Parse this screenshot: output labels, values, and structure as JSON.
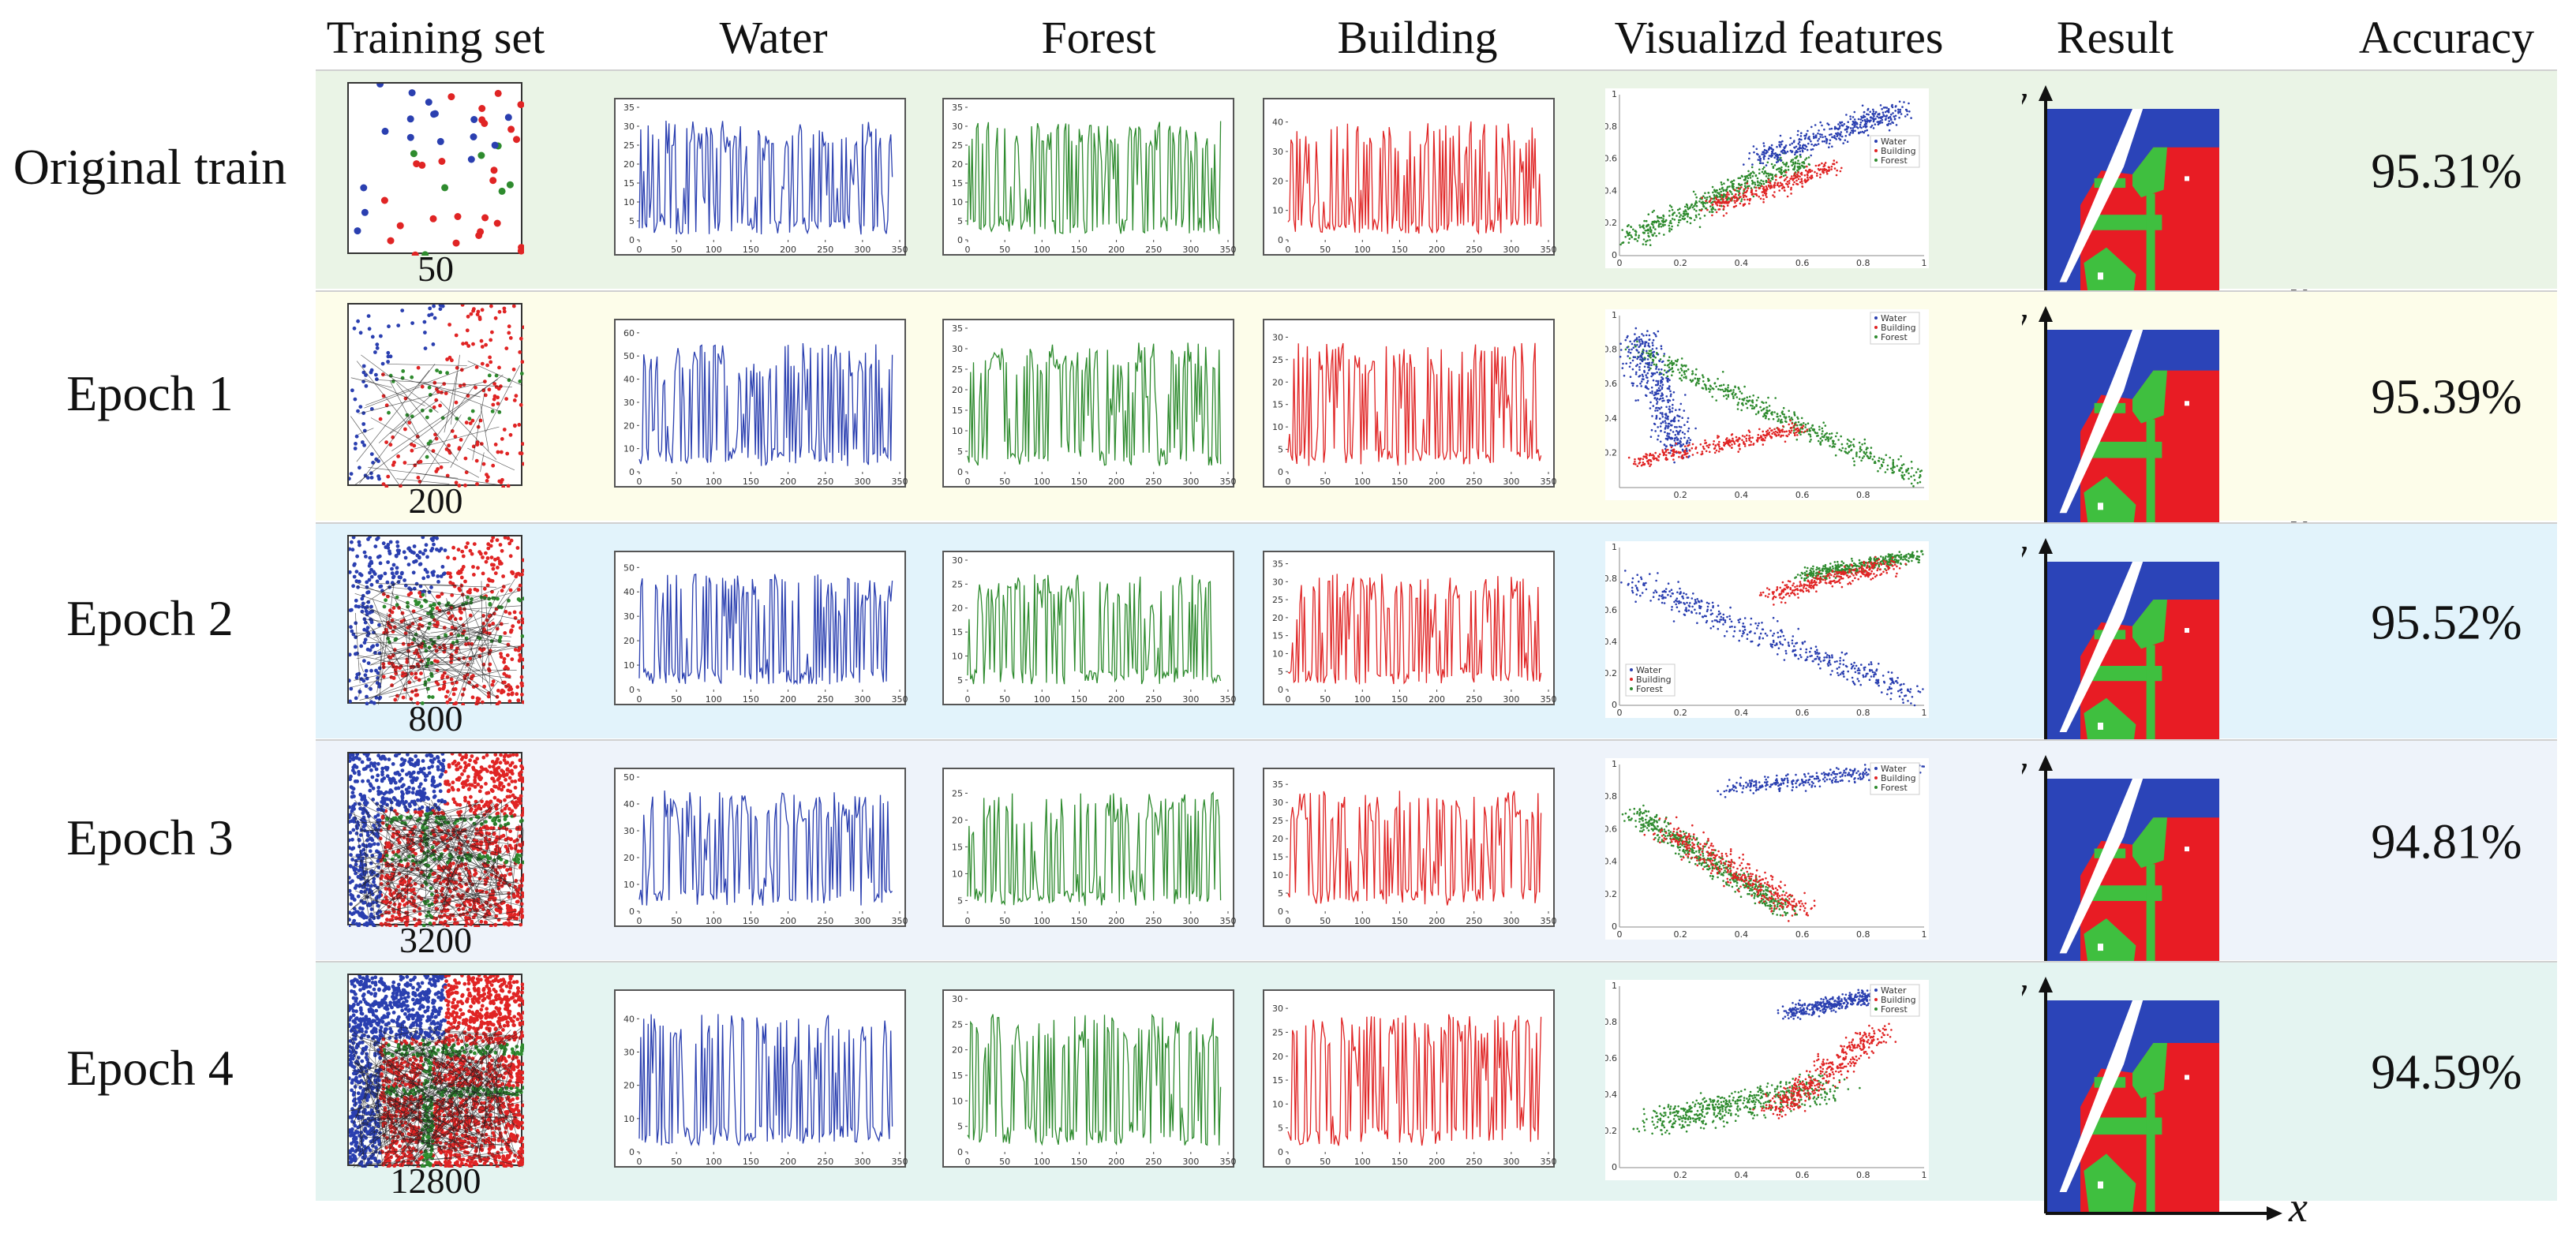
{
  "figure": {
    "headers": {
      "training_set": "Training set",
      "water": "Water",
      "forest": "Forest",
      "building": "Building",
      "visualized_features": "Visualizd features",
      "result": "Result",
      "accuracy": "Accuracy"
    },
    "colors": {
      "water": "#2a3fb0",
      "forest": "#2e8b2e",
      "building": "#e02424",
      "result_water": "#2b44b8",
      "result_forest": "#3fbf3f",
      "result_building": "#e81c24"
    },
    "legend_labels": [
      "Water",
      "Building",
      "Forest"
    ],
    "axis_labels": {
      "x": "x",
      "y": "y"
    },
    "rows": [
      {
        "label": "Original train",
        "count": "50",
        "accuracy": "95.31%",
        "bg": "#eaf4e6"
      },
      {
        "label": "Epoch 1",
        "count": "200",
        "accuracy": "95.39%",
        "bg": "#fdfdea"
      },
      {
        "label": "Epoch 2",
        "count": "800",
        "accuracy": "95.52%",
        "bg": "#e2f3fb"
      },
      {
        "label": "Epoch 3",
        "count": "3200",
        "accuracy": "94.81%",
        "bg": "#eef3fa"
      },
      {
        "label": "Epoch 4",
        "count": "12800",
        "accuracy": "94.59%",
        "bg": "#e4f4f1"
      }
    ]
  },
  "chart_data": [
    {
      "type": "line",
      "title": "Original train — Water",
      "x_ticks": [
        0,
        50,
        100,
        150,
        200,
        250,
        300,
        350
      ],
      "y_ticks": [
        0,
        5,
        10,
        15,
        20,
        25,
        30,
        35
      ],
      "ylim": [
        0,
        35
      ],
      "xlim": [
        0,
        350
      ]
    },
    {
      "type": "line",
      "title": "Original train — Forest",
      "x_ticks": [
        0,
        50,
        100,
        150,
        200,
        250,
        300,
        350
      ],
      "y_ticks": [
        0,
        5,
        10,
        15,
        20,
        25,
        30,
        35
      ],
      "ylim": [
        0,
        35
      ],
      "xlim": [
        0,
        350
      ]
    },
    {
      "type": "line",
      "title": "Original train — Building",
      "x_ticks": [
        0,
        50,
        100,
        150,
        200,
        250,
        300,
        350
      ],
      "y_ticks": [
        0,
        10,
        20,
        30,
        40
      ],
      "ylim": [
        0,
        45
      ],
      "xlim": [
        0,
        350
      ]
    },
    {
      "type": "scatter",
      "title": "Original train — Visualized features",
      "x_ticks": [
        0,
        0.2,
        0.4,
        0.6,
        0.8,
        1
      ],
      "y_ticks": [
        0,
        0.2,
        0.4,
        0.6,
        0.8,
        1
      ],
      "legend": [
        "Water",
        "Building",
        "Forest"
      ]
    },
    {
      "type": "line",
      "title": "Epoch 1 — Water",
      "x_ticks": [
        0,
        50,
        100,
        150,
        200,
        250,
        300,
        350
      ],
      "y_ticks": [
        0,
        10,
        20,
        30,
        40,
        50,
        60
      ],
      "ylim": [
        0,
        62
      ],
      "xlim": [
        0,
        350
      ]
    },
    {
      "type": "line",
      "title": "Epoch 1 — Forest",
      "x_ticks": [
        0,
        50,
        100,
        150,
        200,
        250,
        300,
        350
      ],
      "y_ticks": [
        0,
        5,
        10,
        15,
        20,
        25,
        30,
        35
      ],
      "ylim": [
        0,
        35
      ],
      "xlim": [
        0,
        350
      ]
    },
    {
      "type": "line",
      "title": "Epoch 1 — Building",
      "x_ticks": [
        0,
        50,
        100,
        150,
        200,
        250,
        300,
        350
      ],
      "y_ticks": [
        0,
        5,
        10,
        15,
        20,
        25,
        30
      ],
      "ylim": [
        0,
        32
      ],
      "xlim": [
        0,
        350
      ]
    },
    {
      "type": "scatter",
      "title": "Epoch 1 — Visualized features",
      "x_ticks": [
        0.2,
        0.4,
        0.6,
        0.8
      ],
      "y_ticks": [
        0.2,
        0.4,
        0.6,
        0.8,
        1
      ],
      "legend": [
        "Water",
        "Building",
        "Forest"
      ]
    },
    {
      "type": "line",
      "title": "Epoch 2 — Water",
      "x_ticks": [
        0,
        50,
        100,
        150,
        200,
        250,
        300,
        350
      ],
      "y_ticks": [
        0,
        10,
        20,
        30,
        40,
        50
      ],
      "ylim": [
        0,
        53
      ],
      "xlim": [
        0,
        350
      ]
    },
    {
      "type": "line",
      "title": "Epoch 2 — Forest",
      "x_ticks": [
        0,
        50,
        100,
        150,
        200,
        250,
        300,
        350
      ],
      "y_ticks": [
        5,
        10,
        15,
        20,
        25,
        30
      ],
      "ylim": [
        3,
        30
      ],
      "xlim": [
        0,
        350
      ]
    },
    {
      "type": "line",
      "title": "Epoch 2 — Building",
      "x_ticks": [
        0,
        50,
        100,
        150,
        200,
        250,
        300,
        350
      ],
      "y_ticks": [
        0,
        5,
        10,
        15,
        20,
        25,
        30,
        35
      ],
      "ylim": [
        0,
        36
      ],
      "xlim": [
        0,
        350
      ]
    },
    {
      "type": "scatter",
      "title": "Epoch 2 — Visualized features",
      "x_ticks": [
        0,
        0.2,
        0.4,
        0.6,
        0.8,
        1
      ],
      "y_ticks": [
        0,
        0.2,
        0.4,
        0.6,
        0.8,
        1
      ],
      "legend": [
        "Water",
        "Building",
        "Forest"
      ]
    },
    {
      "type": "line",
      "title": "Epoch 3 — Water",
      "x_ticks": [
        0,
        50,
        100,
        150,
        200,
        250,
        300,
        350
      ],
      "y_ticks": [
        0,
        10,
        20,
        30,
        40,
        50
      ],
      "ylim": [
        0,
        50
      ],
      "xlim": [
        0,
        350
      ]
    },
    {
      "type": "line",
      "title": "Epoch 3 — Forest",
      "x_ticks": [
        0,
        50,
        100,
        150,
        200,
        250,
        300,
        350
      ],
      "y_ticks": [
        5,
        10,
        15,
        20,
        25
      ],
      "ylim": [
        3,
        28
      ],
      "xlim": [
        0,
        350
      ]
    },
    {
      "type": "line",
      "title": "Epoch 3 — Building",
      "x_ticks": [
        0,
        50,
        100,
        150,
        200,
        250,
        300,
        350
      ],
      "y_ticks": [
        0,
        5,
        10,
        15,
        20,
        25,
        30,
        35
      ],
      "ylim": [
        0,
        37
      ],
      "xlim": [
        0,
        350
      ]
    },
    {
      "type": "scatter",
      "title": "Epoch 3 — Visualized features",
      "x_ticks": [
        0,
        0.2,
        0.4,
        0.6,
        0.8,
        1
      ],
      "y_ticks": [
        0,
        0.2,
        0.4,
        0.6,
        0.8,
        1
      ],
      "legend": [
        "Water",
        "Building",
        "Forest"
      ]
    },
    {
      "type": "line",
      "title": "Epoch 4 — Water",
      "x_ticks": [
        0,
        50,
        100,
        150,
        200,
        250,
        300,
        350
      ],
      "y_ticks": [
        0,
        10,
        20,
        30,
        40
      ],
      "ylim": [
        0,
        46
      ],
      "xlim": [
        0,
        350
      ]
    },
    {
      "type": "line",
      "title": "Epoch 4 — Forest",
      "x_ticks": [
        0,
        50,
        100,
        150,
        200,
        250,
        300,
        350
      ],
      "y_ticks": [
        0,
        5,
        10,
        15,
        20,
        25,
        30
      ],
      "ylim": [
        0,
        30
      ],
      "xlim": [
        0,
        350
      ]
    },
    {
      "type": "line",
      "title": "Epoch 4 — Building",
      "x_ticks": [
        0,
        50,
        100,
        150,
        200,
        250,
        300,
        350
      ],
      "y_ticks": [
        0,
        5,
        10,
        15,
        20,
        25,
        30
      ],
      "ylim": [
        0,
        32
      ],
      "xlim": [
        0,
        350
      ]
    },
    {
      "type": "scatter",
      "title": "Epoch 4 — Visualized features",
      "x_ticks": [
        0.2,
        0.4,
        0.6,
        0.8,
        1
      ],
      "y_ticks": [
        0,
        0.2,
        0.4,
        0.6,
        0.8,
        1
      ],
      "legend": [
        "Water",
        "Building",
        "Forest"
      ]
    }
  ]
}
